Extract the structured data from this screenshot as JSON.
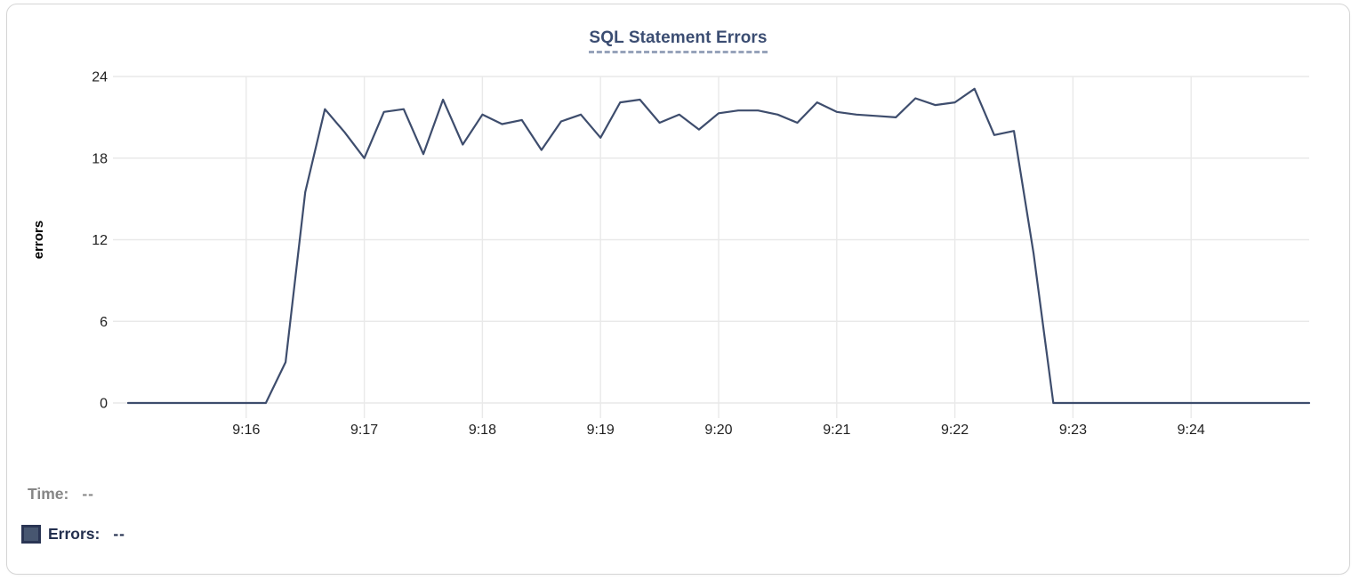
{
  "chart": {
    "title": "SQL Statement Errors"
  },
  "legend": {
    "time_label": "Time:",
    "time_value": "--",
    "errors_label": "Errors:",
    "errors_value": "--",
    "swatch_color": "#475670"
  },
  "colors": {
    "line": "#3e4d6d",
    "grid": "#e9e9e9",
    "title": "#3b4d72",
    "title_underline": "#97a3ba",
    "axis_text": "#1f1f1f",
    "time_text": "#868686",
    "errors_text": "#24304f",
    "card_border": "#d5d5d5"
  },
  "chart_data": {
    "type": "line",
    "title": "SQL Statement Errors",
    "xlabel": "",
    "ylabel": "errors",
    "x_tick_labels": [
      "9:16",
      "9:17",
      "9:18",
      "9:19",
      "9:20",
      "9:21",
      "9:22",
      "9:23",
      "9:24"
    ],
    "y_ticks": [
      0,
      6,
      12,
      18,
      24
    ],
    "ylim": [
      0,
      24
    ],
    "x_range": [
      "9:15:00",
      "9:25:00"
    ],
    "grid": true,
    "legend_position": "bottom-left",
    "series": [
      {
        "name": "Errors",
        "color": "#3e4d6d",
        "x": [
          "9:15:00",
          "9:15:10",
          "9:15:20",
          "9:15:30",
          "9:15:40",
          "9:15:50",
          "9:16:00",
          "9:16:10",
          "9:16:20",
          "9:16:30",
          "9:16:40",
          "9:16:50",
          "9:17:00",
          "9:17:10",
          "9:17:20",
          "9:17:30",
          "9:17:40",
          "9:17:50",
          "9:18:00",
          "9:18:10",
          "9:18:20",
          "9:18:30",
          "9:18:40",
          "9:18:50",
          "9:19:00",
          "9:19:10",
          "9:19:20",
          "9:19:30",
          "9:19:40",
          "9:19:50",
          "9:20:00",
          "9:20:10",
          "9:20:20",
          "9:20:30",
          "9:20:40",
          "9:20:50",
          "9:21:00",
          "9:21:10",
          "9:21:20",
          "9:21:30",
          "9:21:40",
          "9:21:50",
          "9:22:00",
          "9:22:10",
          "9:22:20",
          "9:22:30",
          "9:22:40",
          "9:22:50",
          "9:23:00",
          "9:23:10",
          "9:23:20",
          "9:23:30",
          "9:23:40",
          "9:23:50",
          "9:24:00",
          "9:24:10",
          "9:24:20",
          "9:24:30",
          "9:24:40",
          "9:24:50",
          "9:25:00"
        ],
        "values": [
          0,
          0,
          0,
          0,
          0,
          0,
          0,
          0,
          3,
          15.5,
          21.6,
          19.9,
          18,
          21.4,
          21.6,
          18.3,
          22.3,
          19,
          21.2,
          20.5,
          20.8,
          18.6,
          20.7,
          21.2,
          19.5,
          22.1,
          22.3,
          20.6,
          21.2,
          20.1,
          21.3,
          21.5,
          21.5,
          21.2,
          20.6,
          22.1,
          21.4,
          21.2,
          21.1,
          21.0,
          22.4,
          21.9,
          22.1,
          23.1,
          19.7,
          20.0,
          11,
          0,
          0,
          0,
          0,
          0,
          0,
          0,
          0,
          0,
          0,
          0,
          0,
          0,
          0
        ]
      }
    ]
  }
}
